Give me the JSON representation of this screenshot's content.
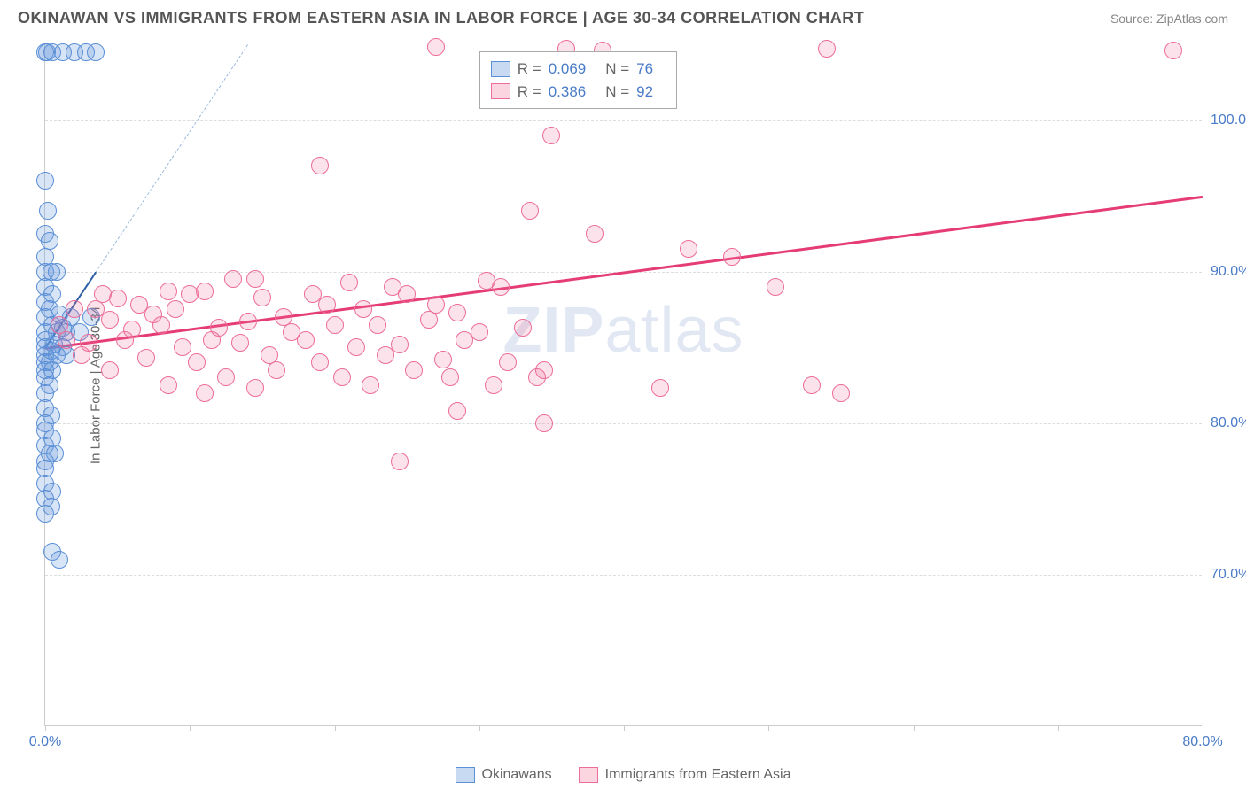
{
  "title": "OKINAWAN VS IMMIGRANTS FROM EASTERN ASIA IN LABOR FORCE | AGE 30-34 CORRELATION CHART",
  "source": "Source: ZipAtlas.com",
  "y_axis_label": "In Labor Force | Age 30-34",
  "watermark_bold": "ZIP",
  "watermark_light": "atlas",
  "chart": {
    "type": "scatter",
    "background_color": "#ffffff",
    "grid_color": "#dddddd",
    "axis_color": "#cccccc",
    "tick_label_color": "#4a7bc8",
    "xlim": [
      0,
      80
    ],
    "ylim": [
      60,
      105
    ],
    "x_ticks": [
      0,
      10,
      20,
      30,
      40,
      50,
      60,
      70,
      80
    ],
    "x_tick_labels": {
      "0": "0.0%",
      "80": "80.0%"
    },
    "y_ticks": [
      70,
      80,
      90,
      100
    ],
    "y_tick_labels": {
      "70": "70.0%",
      "80": "80.0%",
      "90": "90.0%",
      "100": "100.0%"
    },
    "marker_radius": 10,
    "marker_stroke_width": 1.5,
    "series": [
      {
        "name": "Okinawans",
        "fill_color": "rgba(100,150,220,0.25)",
        "stroke_color": "#5b8fd6",
        "swatch_fill": "#c7daf2",
        "swatch_border": "#5b8fd6",
        "R": "0.069",
        "N": "76",
        "trend": {
          "x1": 0,
          "y1": 85.0,
          "x2": 3.5,
          "y2": 90.0,
          "color": "#2d5fa8",
          "width": 2,
          "dashed": false
        },
        "trend_extension": {
          "x1": 3.5,
          "y1": 90.0,
          "x2": 14,
          "y2": 105.0,
          "color": "#9ab8e0",
          "width": 1.5,
          "dashed": true
        },
        "points": [
          [
            0.0,
            104.5
          ],
          [
            0.1,
            104.5
          ],
          [
            0.5,
            104.5
          ],
          [
            1.2,
            104.5
          ],
          [
            2.0,
            104.5
          ],
          [
            2.8,
            104.5
          ],
          [
            3.5,
            104.5
          ],
          [
            0.0,
            96.0
          ],
          [
            0.2,
            94.0
          ],
          [
            0.0,
            92.5
          ],
          [
            0.3,
            92.0
          ],
          [
            0.0,
            91.0
          ],
          [
            0.0,
            90.0
          ],
          [
            0.4,
            90.0
          ],
          [
            0.8,
            90.0
          ],
          [
            0.0,
            89.0
          ],
          [
            0.5,
            88.5
          ],
          [
            0.0,
            88.0
          ],
          [
            0.3,
            87.5
          ],
          [
            1.0,
            87.2
          ],
          [
            1.8,
            87.0
          ],
          [
            0.0,
            87.0
          ],
          [
            0.5,
            86.5
          ],
          [
            1.2,
            86.3
          ],
          [
            0.0,
            86.0
          ],
          [
            0.8,
            86.0
          ],
          [
            1.5,
            86.0
          ],
          [
            2.4,
            86.0
          ],
          [
            3.2,
            87.0
          ],
          [
            0.0,
            85.5
          ],
          [
            0.6,
            85.2
          ],
          [
            1.2,
            85.0
          ],
          [
            0.0,
            85.0
          ],
          [
            0.4,
            84.8
          ],
          [
            0.0,
            84.5
          ],
          [
            0.8,
            84.5
          ],
          [
            1.5,
            84.5
          ],
          [
            0.0,
            84.0
          ],
          [
            0.3,
            84.0
          ],
          [
            0.0,
            83.5
          ],
          [
            0.5,
            83.5
          ],
          [
            0.0,
            83.0
          ],
          [
            0.3,
            82.5
          ],
          [
            0.0,
            82.0
          ],
          [
            0.0,
            81.0
          ],
          [
            0.4,
            80.5
          ],
          [
            0.0,
            80.0
          ],
          [
            0.0,
            79.5
          ],
          [
            0.5,
            79.0
          ],
          [
            0.0,
            78.5
          ],
          [
            0.3,
            78.0
          ],
          [
            0.7,
            78.0
          ],
          [
            0.0,
            77.5
          ],
          [
            0.0,
            77.0
          ],
          [
            0.0,
            76.0
          ],
          [
            0.5,
            75.5
          ],
          [
            0.0,
            75.0
          ],
          [
            0.4,
            74.5
          ],
          [
            0.0,
            74.0
          ],
          [
            0.5,
            71.5
          ],
          [
            1.0,
            71.0
          ]
        ]
      },
      {
        "name": "Immigrants from Eastern Asia",
        "fill_color": "rgba(240,110,150,0.20)",
        "stroke_color": "#ec6d99",
        "swatch_fill": "#fbd5e0",
        "swatch_border": "#ec6d99",
        "R": "0.386",
        "N": "92",
        "trend": {
          "x1": 0,
          "y1": 85.0,
          "x2": 80,
          "y2": 95.0,
          "color": "#e63c76",
          "width": 2.5,
          "dashed": false
        },
        "points": [
          [
            27.0,
            104.8
          ],
          [
            36.0,
            104.7
          ],
          [
            38.5,
            104.6
          ],
          [
            54.0,
            104.7
          ],
          [
            78.0,
            104.6
          ],
          [
            35.0,
            99.0
          ],
          [
            19.0,
            97.0
          ],
          [
            33.5,
            94.0
          ],
          [
            38.0,
            92.5
          ],
          [
            44.5,
            91.5
          ],
          [
            47.5,
            91.0
          ],
          [
            13.0,
            89.5
          ],
          [
            14.5,
            89.5
          ],
          [
            21.0,
            89.3
          ],
          [
            24.0,
            89.0
          ],
          [
            30.5,
            89.4
          ],
          [
            31.5,
            89.0
          ],
          [
            50.5,
            89.0
          ],
          [
            4.0,
            88.5
          ],
          [
            5.0,
            88.2
          ],
          [
            8.5,
            88.7
          ],
          [
            10.0,
            88.5
          ],
          [
            11.0,
            88.7
          ],
          [
            15.0,
            88.3
          ],
          [
            18.5,
            88.5
          ],
          [
            25.0,
            88.5
          ],
          [
            2.0,
            87.5
          ],
          [
            3.5,
            87.5
          ],
          [
            6.5,
            87.8
          ],
          [
            7.5,
            87.2
          ],
          [
            9.0,
            87.5
          ],
          [
            16.5,
            87.0
          ],
          [
            19.5,
            87.8
          ],
          [
            22.0,
            87.5
          ],
          [
            27.0,
            87.8
          ],
          [
            28.5,
            87.3
          ],
          [
            1.0,
            86.5
          ],
          [
            4.5,
            86.8
          ],
          [
            6.0,
            86.2
          ],
          [
            8.0,
            86.5
          ],
          [
            12.0,
            86.3
          ],
          [
            14.0,
            86.7
          ],
          [
            17.0,
            86.0
          ],
          [
            20.0,
            86.5
          ],
          [
            23.0,
            86.5
          ],
          [
            26.5,
            86.8
          ],
          [
            30.0,
            86.0
          ],
          [
            33.0,
            86.3
          ],
          [
            1.5,
            85.5
          ],
          [
            3.0,
            85.3
          ],
          [
            5.5,
            85.5
          ],
          [
            9.5,
            85.0
          ],
          [
            11.5,
            85.5
          ],
          [
            13.5,
            85.3
          ],
          [
            18.0,
            85.5
          ],
          [
            21.5,
            85.0
          ],
          [
            24.5,
            85.2
          ],
          [
            29.0,
            85.5
          ],
          [
            2.5,
            84.5
          ],
          [
            7.0,
            84.3
          ],
          [
            10.5,
            84.0
          ],
          [
            15.5,
            84.5
          ],
          [
            19.0,
            84.0
          ],
          [
            23.5,
            84.5
          ],
          [
            27.5,
            84.2
          ],
          [
            32.0,
            84.0
          ],
          [
            4.5,
            83.5
          ],
          [
            12.5,
            83.0
          ],
          [
            16.0,
            83.5
          ],
          [
            20.5,
            83.0
          ],
          [
            25.5,
            83.5
          ],
          [
            28.0,
            83.0
          ],
          [
            34.5,
            83.5
          ],
          [
            8.5,
            82.5
          ],
          [
            14.5,
            82.3
          ],
          [
            22.5,
            82.5
          ],
          [
            31.0,
            82.5
          ],
          [
            34.0,
            83.0
          ],
          [
            11.0,
            82.0
          ],
          [
            42.5,
            82.3
          ],
          [
            53.0,
            82.5
          ],
          [
            55.0,
            82.0
          ],
          [
            28.5,
            80.8
          ],
          [
            34.5,
            80.0
          ],
          [
            24.5,
            77.5
          ]
        ]
      }
    ]
  },
  "legend_top": {
    "R_label": "R =",
    "N_label": "N ="
  },
  "legend_bottom": {
    "items": [
      "Okinawans",
      "Immigrants from Eastern Asia"
    ]
  }
}
